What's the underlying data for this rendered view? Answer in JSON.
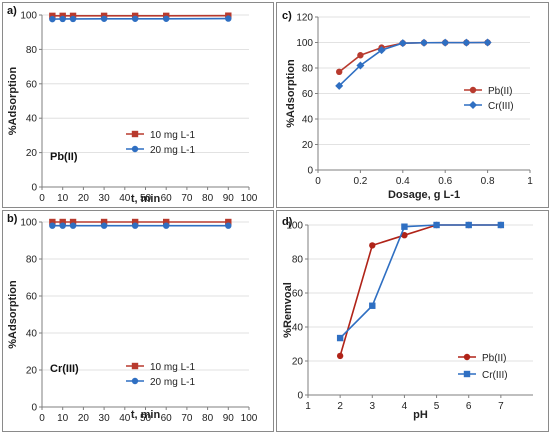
{
  "chart_data": [
    {
      "id": "a",
      "panel_label": "a)",
      "type": "line",
      "xlabel": "t, min",
      "ylabel": "%Adsorption",
      "xlim": [
        0,
        100
      ],
      "ylim": [
        0,
        100
      ],
      "xticks": [
        0,
        10,
        20,
        30,
        40,
        50,
        60,
        70,
        80,
        90,
        100
      ],
      "yticks": [
        0,
        20,
        40,
        60,
        80,
        100
      ],
      "annotation": "Pb(II)",
      "legend_position": "bottom-right",
      "series": [
        {
          "name": "10 mg L-1",
          "color": "#B83A2E",
          "marker": "square",
          "x": [
            5,
            10,
            15,
            30,
            45,
            60,
            90
          ],
          "y": [
            99.5,
            99.5,
            99.5,
            99.5,
            99.5,
            99.5,
            99.6
          ]
        },
        {
          "name": "20 mg L-1",
          "color": "#2F6FC2",
          "marker": "circle",
          "x": [
            5,
            10,
            15,
            30,
            45,
            60,
            90
          ],
          "y": [
            97.6,
            97.7,
            97.7,
            97.8,
            97.8,
            97.8,
            97.9
          ]
        }
      ]
    },
    {
      "id": "c",
      "panel_label": "c)",
      "type": "line",
      "xlabel": "Dosage, g L-1",
      "ylabel": "%Adsorption",
      "xlim": [
        0,
        1
      ],
      "ylim": [
        0,
        120
      ],
      "xticks": [
        0,
        0.2,
        0.4,
        0.6,
        0.8,
        1
      ],
      "xtick_labels": [
        "0",
        "0.2",
        "0.4",
        "0.6",
        "0.8",
        "1"
      ],
      "yticks": [
        0,
        20,
        40,
        60,
        80,
        100,
        120
      ],
      "legend_position": "middle-right",
      "series": [
        {
          "name": "Pb(II)",
          "color": "#B83A2E",
          "marker": "circle",
          "x": [
            0.1,
            0.2,
            0.3,
            0.4,
            0.5,
            0.6,
            0.7,
            0.8
          ],
          "y": [
            77,
            90,
            96,
            99.5,
            99.8,
            99.9,
            99.9,
            100
          ]
        },
        {
          "name": "Cr(III)",
          "color": "#2F6FC2",
          "marker": "diamond",
          "x": [
            0.1,
            0.2,
            0.3,
            0.4,
            0.5,
            0.6,
            0.7,
            0.8
          ],
          "y": [
            66,
            82,
            94,
            99.5,
            99.8,
            99.9,
            99.9,
            100
          ]
        }
      ]
    },
    {
      "id": "b",
      "panel_label": "b)",
      "type": "line",
      "xlabel": "t, min",
      "ylabel": "%Adsorption",
      "xlim": [
        0,
        100
      ],
      "ylim": [
        0,
        100
      ],
      "xticks": [
        0,
        10,
        20,
        30,
        40,
        50,
        60,
        70,
        80,
        90,
        100
      ],
      "yticks": [
        0,
        20,
        40,
        60,
        80,
        100
      ],
      "annotation": "Cr(III)",
      "legend_position": "bottom-right",
      "series": [
        {
          "name": "10 mg L-1",
          "color": "#B83A2E",
          "marker": "square",
          "x": [
            5,
            10,
            15,
            30,
            45,
            60,
            90
          ],
          "y": [
            100,
            100,
            100,
            100,
            100,
            100,
            100
          ]
        },
        {
          "name": "20 mg L-1",
          "color": "#2F6FC2",
          "marker": "circle",
          "x": [
            5,
            10,
            15,
            30,
            45,
            60,
            90
          ],
          "y": [
            98,
            98,
            98,
            98,
            98,
            98,
            98
          ]
        }
      ]
    },
    {
      "id": "d",
      "panel_label": "d)",
      "type": "line",
      "xlabel": "pH",
      "ylabel": "%Remvoal",
      "xlim": [
        1,
        8
      ],
      "ylim": [
        0,
        100
      ],
      "xticks": [
        1,
        2,
        3,
        4,
        5,
        6,
        7
      ],
      "yticks": [
        0,
        20,
        40,
        60,
        80,
        100
      ],
      "legend_position": "bottom-right",
      "series": [
        {
          "name": "Pb(II)",
          "color": "#B02318",
          "marker": "circle",
          "x": [
            2,
            3,
            4,
            5,
            6,
            7
          ],
          "y": [
            23,
            88,
            94,
            100,
            100,
            100
          ]
        },
        {
          "name": "Cr(III)",
          "color": "#2F6FC2",
          "marker": "square",
          "x": [
            2,
            3,
            4,
            5,
            6,
            7
          ],
          "y": [
            33.5,
            52.5,
            99,
            100,
            100,
            100
          ]
        }
      ]
    }
  ]
}
